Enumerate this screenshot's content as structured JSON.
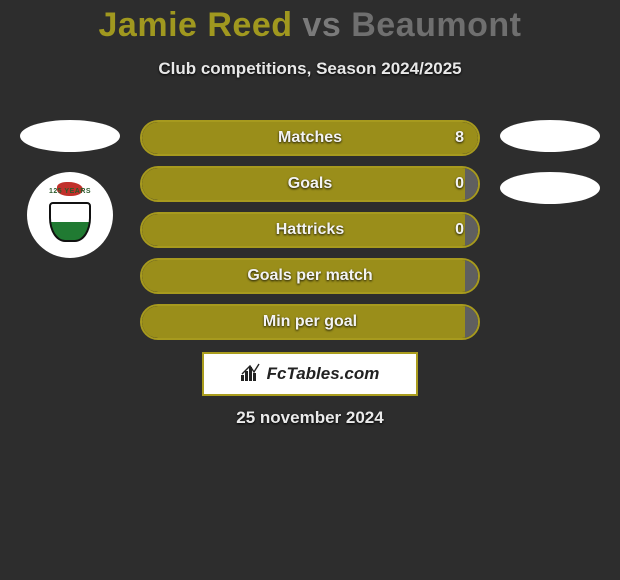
{
  "title": {
    "player1": "Jamie Reed",
    "vs": "vs",
    "player2": "Beaumont"
  },
  "subtitle": "Club competitions, Season 2024/2025",
  "bars": [
    {
      "label": "Matches",
      "left_pct": 100,
      "right_pct": 0,
      "right_value": "8",
      "fill_color": "#9a8e1a",
      "border_color": "#a79a1e"
    },
    {
      "label": "Goals",
      "left_pct": 96,
      "right_pct": 4,
      "right_value": "0",
      "fill_color": "#9a8e1a",
      "border_color": "#a79a1e"
    },
    {
      "label": "Hattricks",
      "left_pct": 96,
      "right_pct": 4,
      "right_value": "0",
      "fill_color": "#9a8e1a",
      "border_color": "#a79a1e"
    },
    {
      "label": "Goals per match",
      "left_pct": 96,
      "right_pct": 4,
      "right_value": "",
      "fill_color": "#9a8e1a",
      "border_color": "#a79a1e"
    },
    {
      "label": "Min per goal",
      "left_pct": 96,
      "right_pct": 4,
      "right_value": "",
      "fill_color": "#9a8e1a",
      "border_color": "#a79a1e"
    }
  ],
  "branding": "FcTables.com",
  "date": "25 november 2024",
  "colors": {
    "background": "#2d2d2d",
    "accent": "#a0981f",
    "bar_border": "#a79a1e",
    "bar_fill": "#9a8e1a",
    "right_fill": "#5f5f5f",
    "text_light": "#e8e8e8",
    "oval": "#ffffff"
  },
  "crest": {
    "band_text": "125 YEARS"
  },
  "left_ovals_count": 1,
  "right_ovals_count": 2,
  "has_left_crest": true
}
